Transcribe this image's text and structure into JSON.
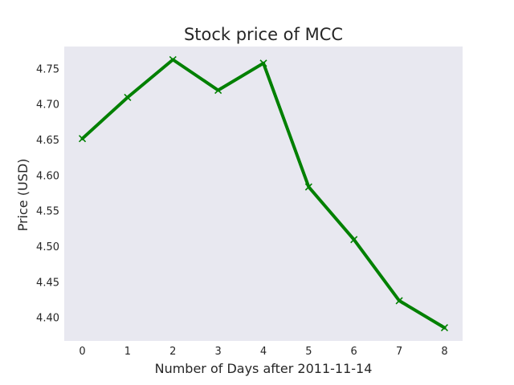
{
  "chart_data": {
    "type": "line",
    "title": "Stock price of MCC",
    "xlabel": "Number of Days after 2011-11-14",
    "ylabel": "Price (USD)",
    "x": [
      0,
      1,
      2,
      3,
      4,
      5,
      6,
      7,
      8
    ],
    "series": [
      {
        "name": "MCC",
        "values": [
          4.652,
          4.71,
          4.763,
          4.72,
          4.758,
          4.584,
          4.51,
          4.424,
          4.386
        ],
        "color": "#008000",
        "marker": "x"
      }
    ],
    "xticks": [
      "0",
      "1",
      "2",
      "3",
      "4",
      "5",
      "6",
      "7",
      "8"
    ],
    "yticks": [
      "4.40",
      "4.45",
      "4.50",
      "4.55",
      "4.60",
      "4.65",
      "4.70",
      "4.75"
    ],
    "xlim": [
      -0.4,
      8.4
    ],
    "ylim": [
      4.3675,
      4.7815
    ],
    "grid": false,
    "background": "#e8e8f0"
  }
}
